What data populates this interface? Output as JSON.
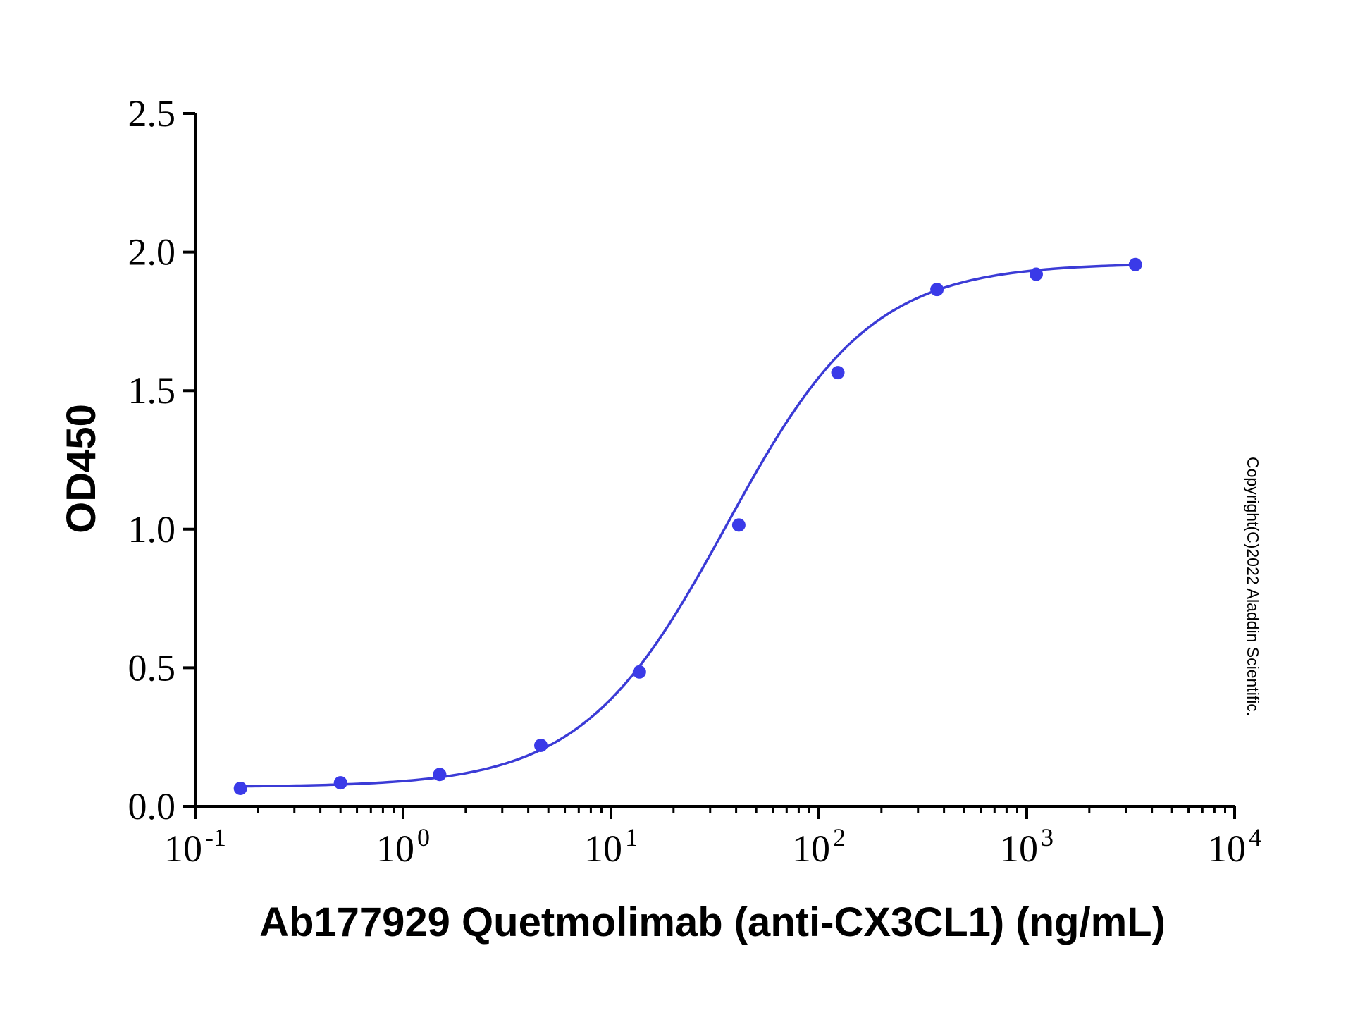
{
  "chart_data": {
    "type": "scatter",
    "xscale": "log",
    "xlabel": "Ab177929 Quetmolimab (anti-CX3CL1) (ng/mL)",
    "ylabel": "OD450",
    "xlim": [
      0.1,
      10000
    ],
    "ylim": [
      0,
      2.5
    ],
    "x_ticks": [
      {
        "base": "10",
        "exp": "-1"
      },
      {
        "base": "10",
        "exp": "0"
      },
      {
        "base": "10",
        "exp": "1"
      },
      {
        "base": "10",
        "exp": "2"
      },
      {
        "base": "10",
        "exp": "3"
      },
      {
        "base": "10",
        "exp": "4"
      }
    ],
    "y_ticks": [
      "0.0",
      "0.5",
      "1.0",
      "1.5",
      "2.0",
      "2.5"
    ],
    "series": [
      {
        "x": [
          0.165,
          0.5,
          1.5,
          4.6,
          13.7,
          41.2,
          123.5,
          370,
          1111,
          3333
        ],
        "y": [
          0.065,
          0.085,
          0.115,
          0.22,
          0.485,
          1.015,
          1.565,
          1.865,
          1.92,
          1.955
        ],
        "marker_color": "#3a3ae8",
        "fit_curve": true,
        "line_color": "#3b3bd6"
      }
    ],
    "grid": false,
    "legend": "none",
    "copyright": "Copyright(C)2022 Aladdin Scientific."
  }
}
